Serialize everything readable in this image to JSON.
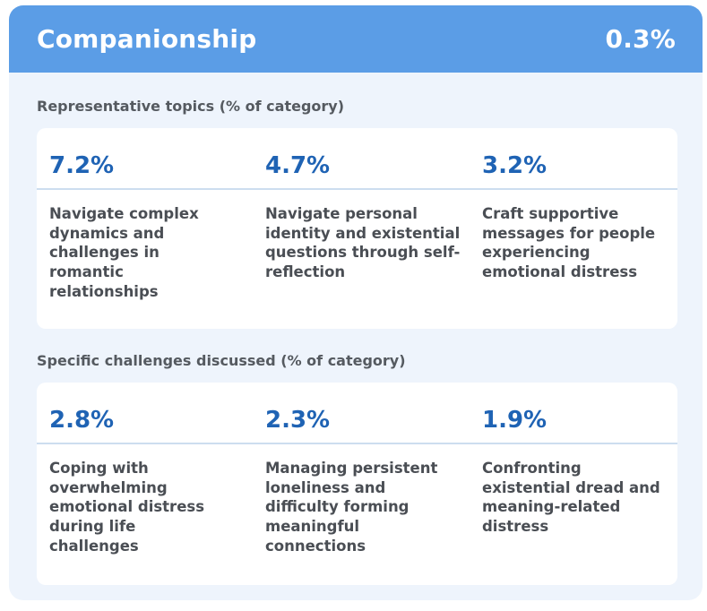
{
  "header": {
    "title": "Companionship",
    "percentage": "0.3%",
    "background_color": "#5b9de6"
  },
  "sections": [
    {
      "label": "Representative topics (% of category)",
      "items": [
        {
          "value": "7.2%",
          "description": "Navigate complex dynamics and challenges in romantic relationships"
        },
        {
          "value": "4.7%",
          "description": "Navigate personal identity and existential questions through self-reflection"
        },
        {
          "value": "3.2%",
          "description": "Craft supportive messages for people experiencing emotional distress"
        }
      ]
    },
    {
      "label": "Specific challenges discussed (% of category)",
      "items": [
        {
          "value": "2.8%",
          "description": "Coping with overwhelming emotional distress during life challenges"
        },
        {
          "value": "2.3%",
          "description": "Managing persistent loneliness and difficulty forming meaningful connections"
        },
        {
          "value": "1.9%",
          "description": "Confronting existential dread and meaning-related distress"
        }
      ]
    }
  ],
  "colors": {
    "accent_blue": "#1f63b4",
    "card_background": "#eef4fc",
    "panel_background": "#ffffff"
  }
}
